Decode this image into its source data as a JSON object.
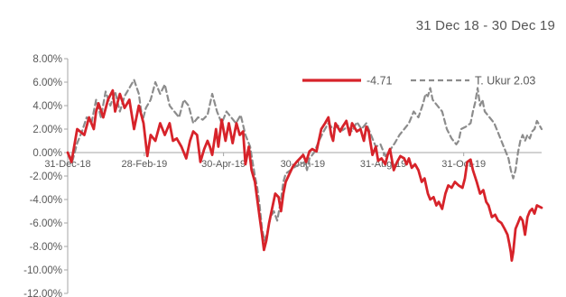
{
  "header": {
    "title": "",
    "date_range": "31 Dec 18 - 30 Dec 19"
  },
  "colors": {
    "fund": "#d7232a",
    "benchmark": "#8c8c8c",
    "axis": "#a6a6a6",
    "text": "#595959",
    "title": "#1f6fd1"
  },
  "chart_data": {
    "type": "line",
    "title": "",
    "xlabel": "",
    "ylabel": "",
    "ylim": [
      -12,
      8
    ],
    "xlim": [
      0,
      1
    ],
    "grid": false,
    "legend_position": "top-right",
    "y_ticks": [
      8,
      6,
      4,
      2,
      0,
      -2,
      -4,
      -6,
      -8,
      -10,
      -12
    ],
    "y_tick_labels": [
      "8.00%",
      "6.00%",
      "4.00%",
      "2.00%",
      "0.00%",
      "-2.00%",
      "-4.00%",
      "-6.00%",
      "-8.00%",
      "-10.00%",
      "-12.00%"
    ],
    "x_ticks": [
      0.0,
      0.1616,
      0.3288,
      0.4959,
      0.6658,
      0.8356
    ],
    "x_tick_labels": [
      "31-Dec-18",
      "28-Feb-19",
      "30-Apr-19",
      "30-Jun-19",
      "31-Aug-19",
      "31-Oct-19"
    ],
    "series": [
      {
        "name": "-4.71",
        "style": "solid",
        "points": [
          [
            0.0,
            0.0
          ],
          [
            0.008,
            -0.8
          ],
          [
            0.02,
            2.0
          ],
          [
            0.035,
            1.5
          ],
          [
            0.045,
            3.0
          ],
          [
            0.055,
            2.0
          ],
          [
            0.06,
            3.5
          ],
          [
            0.065,
            4.2
          ],
          [
            0.075,
            3.0
          ],
          [
            0.085,
            4.5
          ],
          [
            0.095,
            5.3
          ],
          [
            0.1,
            3.5
          ],
          [
            0.11,
            5.0
          ],
          [
            0.12,
            3.8
          ],
          [
            0.13,
            4.5
          ],
          [
            0.14,
            2.0
          ],
          [
            0.15,
            4.0
          ],
          [
            0.16,
            2.5
          ],
          [
            0.168,
            -0.3
          ],
          [
            0.175,
            1.5
          ],
          [
            0.185,
            1.0
          ],
          [
            0.195,
            2.5
          ],
          [
            0.205,
            1.5
          ],
          [
            0.215,
            2.5
          ],
          [
            0.222,
            1.0
          ],
          [
            0.23,
            1.2
          ],
          [
            0.24,
            0.5
          ],
          [
            0.25,
            -0.5
          ],
          [
            0.258,
            1.0
          ],
          [
            0.265,
            1.8
          ],
          [
            0.273,
            1.5
          ],
          [
            0.28,
            -0.8
          ],
          [
            0.288,
            0.3
          ],
          [
            0.295,
            1.0
          ],
          [
            0.3,
            0.5
          ],
          [
            0.305,
            -0.2
          ],
          [
            0.313,
            2.0
          ],
          [
            0.318,
            0.5
          ],
          [
            0.325,
            2.8
          ],
          [
            0.333,
            1.0
          ],
          [
            0.34,
            2.5
          ],
          [
            0.348,
            0.8
          ],
          [
            0.356,
            2.5
          ],
          [
            0.363,
            1.5
          ],
          [
            0.37,
            1.8
          ],
          [
            0.375,
            -1.0
          ],
          [
            0.382,
            0.5
          ],
          [
            0.388,
            -1.5
          ],
          [
            0.395,
            -2.5
          ],
          [
            0.4,
            -4.0
          ],
          [
            0.405,
            -5.5
          ],
          [
            0.41,
            -7.0
          ],
          [
            0.414,
            -8.3
          ],
          [
            0.419,
            -7.5
          ],
          [
            0.425,
            -6.0
          ],
          [
            0.43,
            -5.0
          ],
          [
            0.438,
            -3.5
          ],
          [
            0.445,
            -3.8
          ],
          [
            0.45,
            -5.0
          ],
          [
            0.455,
            -3.5
          ],
          [
            0.46,
            -2.5
          ],
          [
            0.468,
            -1.8
          ],
          [
            0.475,
            -1.2
          ],
          [
            0.483,
            -0.8
          ],
          [
            0.49,
            -0.5
          ],
          [
            0.497,
            -0.2
          ],
          [
            0.503,
            -0.8
          ],
          [
            0.51,
            0.1
          ],
          [
            0.516,
            0.3
          ],
          [
            0.525,
            0.1
          ],
          [
            0.535,
            2.0
          ],
          [
            0.543,
            2.5
          ],
          [
            0.55,
            3.0
          ],
          [
            0.556,
            1.5
          ],
          [
            0.56,
            1.0
          ],
          [
            0.565,
            2.5
          ],
          [
            0.575,
            1.8
          ],
          [
            0.58,
            2.2
          ],
          [
            0.588,
            2.7
          ],
          [
            0.595,
            1.5
          ],
          [
            0.6,
            2.5
          ],
          [
            0.61,
            1.8
          ],
          [
            0.618,
            2.0
          ],
          [
            0.625,
            1.0
          ],
          [
            0.63,
            2.2
          ],
          [
            0.635,
            1.8
          ],
          [
            0.643,
            -0.2
          ],
          [
            0.65,
            0.5
          ],
          [
            0.655,
            -0.7
          ],
          [
            0.662,
            -0.5
          ],
          [
            0.67,
            -1.0
          ],
          [
            0.675,
            -0.2
          ],
          [
            0.68,
            0.3
          ],
          [
            0.688,
            -1.5
          ],
          [
            0.695,
            -0.8
          ],
          [
            0.702,
            -0.3
          ],
          [
            0.71,
            -0.5
          ],
          [
            0.715,
            -1.0
          ],
          [
            0.72,
            -0.5
          ],
          [
            0.726,
            -1.3
          ],
          [
            0.733,
            -1.0
          ],
          [
            0.74,
            -1.5
          ],
          [
            0.747,
            -2.5
          ],
          [
            0.753,
            -2.2
          ],
          [
            0.76,
            -3.5
          ],
          [
            0.765,
            -4.0
          ],
          [
            0.772,
            -3.8
          ],
          [
            0.778,
            -4.5
          ],
          [
            0.783,
            -4.2
          ],
          [
            0.79,
            -4.8
          ],
          [
            0.797,
            -3.5
          ],
          [
            0.803,
            -2.8
          ],
          [
            0.81,
            -3.0
          ],
          [
            0.817,
            -2.5
          ],
          [
            0.825,
            -2.8
          ],
          [
            0.833,
            -3.0
          ],
          [
            0.838,
            -2.2
          ],
          [
            0.843,
            -0.8
          ],
          [
            0.85,
            -0.6
          ],
          [
            0.855,
            -1.5
          ],
          [
            0.863,
            -2.5
          ],
          [
            0.87,
            -3.5
          ],
          [
            0.877,
            -3.2
          ],
          [
            0.883,
            -4.2
          ],
          [
            0.888,
            -4.5
          ],
          [
            0.895,
            -5.5
          ],
          [
            0.902,
            -5.3
          ],
          [
            0.908,
            -5.8
          ],
          [
            0.915,
            -6.0
          ],
          [
            0.922,
            -6.5
          ],
          [
            0.928,
            -7.0
          ],
          [
            0.932,
            -7.8
          ],
          [
            0.935,
            -8.5
          ],
          [
            0.937,
            -9.2
          ],
          [
            0.94,
            -8.5
          ],
          [
            0.945,
            -6.5
          ],
          [
            0.95,
            -6.0
          ],
          [
            0.955,
            -5.5
          ],
          [
            0.96,
            -5.8
          ],
          [
            0.965,
            -7.0
          ],
          [
            0.97,
            -5.5
          ],
          [
            0.975,
            -5.0
          ],
          [
            0.98,
            -4.8
          ],
          [
            0.985,
            -5.2
          ],
          [
            0.99,
            -4.5
          ],
          [
            1.0,
            -4.7
          ]
        ]
      },
      {
        "name": "T. Ukur 2.03",
        "style": "dashed",
        "points": [
          [
            0.0,
            0.0
          ],
          [
            0.01,
            -0.7
          ],
          [
            0.02,
            0.8
          ],
          [
            0.03,
            1.8
          ],
          [
            0.04,
            3.0
          ],
          [
            0.05,
            2.5
          ],
          [
            0.06,
            4.5
          ],
          [
            0.07,
            3.0
          ],
          [
            0.08,
            5.2
          ],
          [
            0.09,
            4.0
          ],
          [
            0.1,
            5.2
          ],
          [
            0.11,
            3.5
          ],
          [
            0.12,
            4.8
          ],
          [
            0.13,
            5.5
          ],
          [
            0.14,
            6.2
          ],
          [
            0.15,
            5.0
          ],
          [
            0.158,
            2.7
          ],
          [
            0.165,
            3.8
          ],
          [
            0.175,
            4.5
          ],
          [
            0.185,
            6.0
          ],
          [
            0.195,
            5.0
          ],
          [
            0.205,
            5.8
          ],
          [
            0.215,
            4.0
          ],
          [
            0.225,
            3.5
          ],
          [
            0.235,
            3.0
          ],
          [
            0.245,
            4.5
          ],
          [
            0.255,
            4.0
          ],
          [
            0.265,
            2.5
          ],
          [
            0.275,
            3.0
          ],
          [
            0.285,
            2.8
          ],
          [
            0.295,
            3.2
          ],
          [
            0.305,
            5.0
          ],
          [
            0.315,
            3.5
          ],
          [
            0.325,
            2.5
          ],
          [
            0.335,
            3.5
          ],
          [
            0.345,
            3.0
          ],
          [
            0.355,
            2.5
          ],
          [
            0.365,
            3.2
          ],
          [
            0.375,
            1.5
          ],
          [
            0.385,
            0.5
          ],
          [
            0.39,
            -0.8
          ],
          [
            0.395,
            -2.0
          ],
          [
            0.4,
            -3.0
          ],
          [
            0.405,
            -4.5
          ],
          [
            0.41,
            -6.5
          ],
          [
            0.415,
            -7.5
          ],
          [
            0.42,
            -7.0
          ],
          [
            0.428,
            -5.5
          ],
          [
            0.435,
            -5.0
          ],
          [
            0.442,
            -5.8
          ],
          [
            0.45,
            -4.0
          ],
          [
            0.455,
            -2.5
          ],
          [
            0.46,
            -1.8
          ],
          [
            0.47,
            -1.5
          ],
          [
            0.48,
            -1.2
          ],
          [
            0.49,
            -1.0
          ],
          [
            0.5,
            -0.8
          ],
          [
            0.505,
            -1.5
          ],
          [
            0.51,
            -0.5
          ],
          [
            0.52,
            0.0
          ],
          [
            0.53,
            1.0
          ],
          [
            0.54,
            1.8
          ],
          [
            0.55,
            2.5
          ],
          [
            0.56,
            2.0
          ],
          [
            0.57,
            2.3
          ],
          [
            0.58,
            1.9
          ],
          [
            0.59,
            2.2
          ],
          [
            0.6,
            1.8
          ],
          [
            0.61,
            2.6
          ],
          [
            0.62,
            2.0
          ],
          [
            0.63,
            2.5
          ],
          [
            0.64,
            1.5
          ],
          [
            0.65,
            0.5
          ],
          [
            0.66,
            0.7
          ],
          [
            0.67,
            -0.3
          ],
          [
            0.68,
            0.2
          ],
          [
            0.69,
            0.8
          ],
          [
            0.7,
            1.5
          ],
          [
            0.71,
            2.0
          ],
          [
            0.72,
            2.5
          ],
          [
            0.73,
            3.5
          ],
          [
            0.74,
            3.0
          ],
          [
            0.75,
            4.2
          ],
          [
            0.755,
            5.0
          ],
          [
            0.76,
            4.8
          ],
          [
            0.765,
            5.5
          ],
          [
            0.77,
            4.5
          ],
          [
            0.78,
            4.0
          ],
          [
            0.79,
            3.5
          ],
          [
            0.8,
            2.0
          ],
          [
            0.81,
            1.2
          ],
          [
            0.82,
            0.7
          ],
          [
            0.825,
            1.0
          ],
          [
            0.83,
            2.0
          ],
          [
            0.84,
            2.2
          ],
          [
            0.85,
            2.5
          ],
          [
            0.855,
            3.5
          ],
          [
            0.86,
            4.3
          ],
          [
            0.865,
            5.5
          ],
          [
            0.87,
            4.0
          ],
          [
            0.875,
            4.5
          ],
          [
            0.88,
            3.5
          ],
          [
            0.89,
            3.0
          ],
          [
            0.9,
            2.5
          ],
          [
            0.91,
            1.5
          ],
          [
            0.92,
            0.5
          ],
          [
            0.93,
            -0.5
          ],
          [
            0.935,
            -1.5
          ],
          [
            0.94,
            -2.2
          ],
          [
            0.945,
            -1.5
          ],
          [
            0.95,
            0.0
          ],
          [
            0.955,
            1.0
          ],
          [
            0.96,
            1.5
          ],
          [
            0.965,
            1.0
          ],
          [
            0.97,
            1.5
          ],
          [
            0.975,
            1.2
          ],
          [
            0.98,
            1.8
          ],
          [
            0.985,
            2.0
          ],
          [
            0.99,
            2.7
          ],
          [
            1.0,
            2.0
          ]
        ]
      }
    ]
  }
}
